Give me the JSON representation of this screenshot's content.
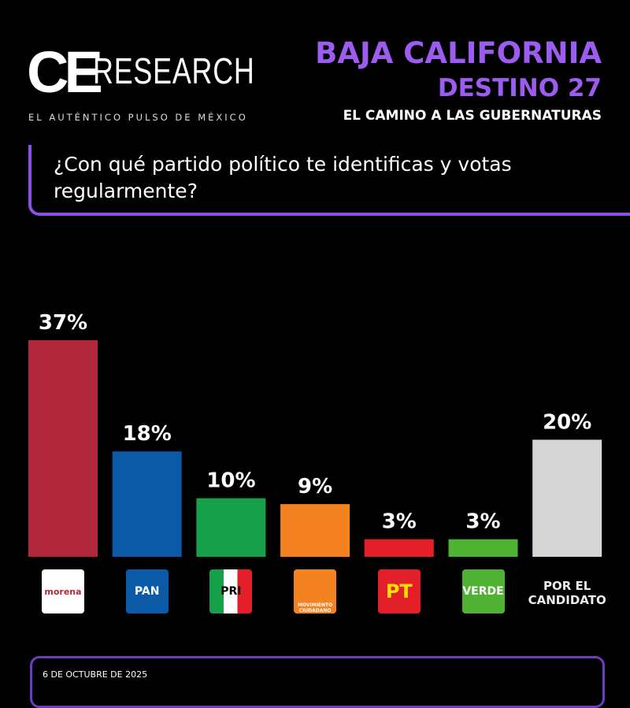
{
  "header": {
    "brand_ce": "CE",
    "brand_research": "RESEARCH",
    "tagline": "EL AUTÉNTICO PULSO DE MÉXICO",
    "state": "BAJA CALIFORNIA",
    "edition": "DESTINO 27",
    "subtitle": "EL CAMINO A LAS GUBERNATURAS"
  },
  "chart_data": {
    "type": "bar",
    "title": "¿Con qué partido político te identificas y votas regularmente?",
    "categories": [
      "morena",
      "PAN",
      "PRI",
      "MOVIMIENTO CIUDADANO",
      "PT",
      "VERDE",
      "POR EL CANDIDATO"
    ],
    "values": [
      37,
      18,
      10,
      9,
      3,
      3,
      20
    ],
    "value_labels": [
      "37%",
      "18%",
      "10%",
      "9%",
      "3%",
      "3%",
      "20%"
    ],
    "colors": [
      "#b0283a",
      "#0b5aa7",
      "#16a04a",
      "#f58220",
      "#e3202a",
      "#4fb232",
      "#d6d6d6"
    ]
  },
  "footer": {
    "date": "6 DE OCTUBRE DE 2025"
  }
}
